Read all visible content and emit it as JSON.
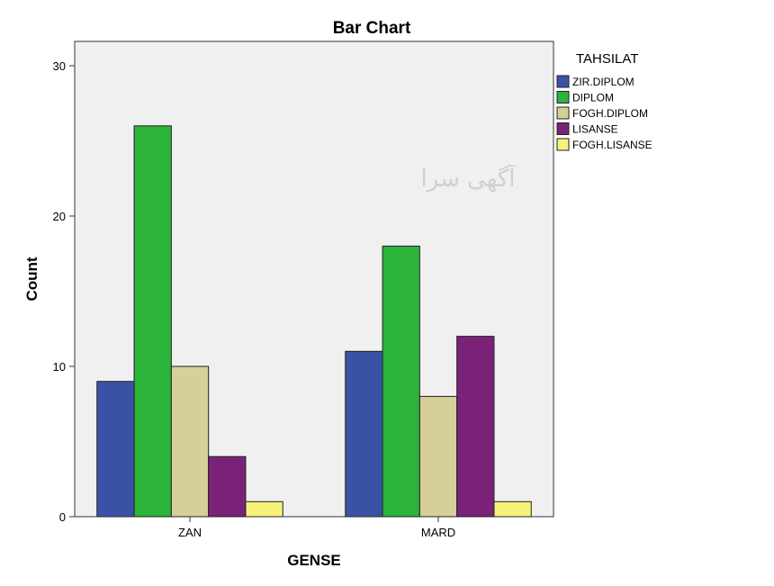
{
  "chart_data": {
    "type": "bar",
    "title": "Bar Chart",
    "xlabel": "GENSE",
    "ylabel": "Count",
    "categories": [
      "ZAN",
      "MARD"
    ],
    "ylim": [
      0,
      30
    ],
    "yticks": [
      0,
      10,
      20,
      30
    ],
    "legend_title": "TAHSILAT",
    "legend_position": "right",
    "grid": false,
    "series": [
      {
        "name": "ZIR.DIPLOM",
        "color": "#3a52a6",
        "values": [
          9,
          11
        ]
      },
      {
        "name": "DIPLOM",
        "color": "#2bb33a",
        "values": [
          26,
          18
        ]
      },
      {
        "name": "FOGH.DIPLOM",
        "color": "#d6cf9a",
        "values": [
          10,
          8
        ]
      },
      {
        "name": "LISANSE",
        "color": "#7a2278",
        "values": [
          4,
          12
        ]
      },
      {
        "name": "FOGH.LISANSE",
        "color": "#f7f279",
        "values": [
          1,
          1
        ]
      }
    ],
    "plot_background": "#f0f0f0"
  },
  "watermark": "آگهی سرا"
}
